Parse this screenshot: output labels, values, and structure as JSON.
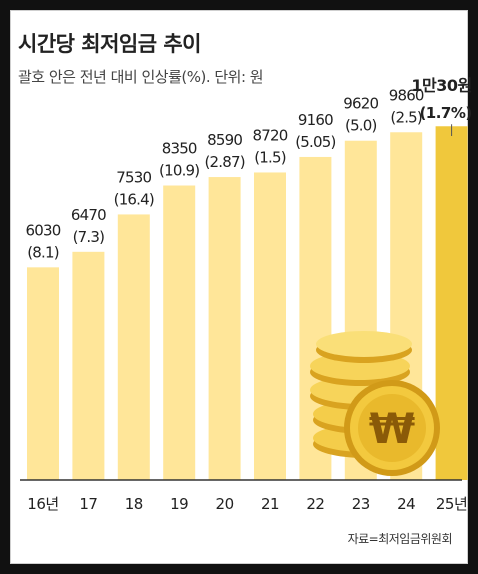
{
  "title": "시간당 최저임금 추이",
  "subtitle": "괄호 안은 전년 대비 인상률(%). 단위: 원",
  "source": "자료=최저임금위원회",
  "colors": {
    "bar": "#ffe699",
    "bar_highlight": "#f0c83c",
    "axis": "#333333",
    "text": "#222222"
  },
  "chart_data": {
    "type": "bar",
    "title": "시간당 최저임금 추이",
    "subtitle": "괄호 안은 전년 대비 인상률(%). 단위: 원",
    "categories": [
      "16년",
      "17",
      "18",
      "19",
      "20",
      "21",
      "22",
      "23",
      "24",
      "25년"
    ],
    "values": [
      6030,
      6470,
      7530,
      8350,
      8590,
      8720,
      9160,
      9620,
      9860,
      10030
    ],
    "value_labels": [
      "6030",
      "6470",
      "7530",
      "8350",
      "8590",
      "8720",
      "9160",
      "9620",
      "9860",
      "1만30원"
    ],
    "growth_labels": [
      "(8.1)",
      "(7.3)",
      "(16.4)",
      "(10.9)",
      "(2.87)",
      "(1.5)",
      "(5.05)",
      "(5.0)",
      "(2.5)",
      "(1.7%)"
    ],
    "highlight_index": 9,
    "ylim": [
      0,
      11200
    ],
    "grid": false,
    "xlabel": "",
    "ylabel": ""
  },
  "decoration": {
    "coin_icon": "won-coin-stack-icon",
    "coin_symbol": "₩"
  }
}
